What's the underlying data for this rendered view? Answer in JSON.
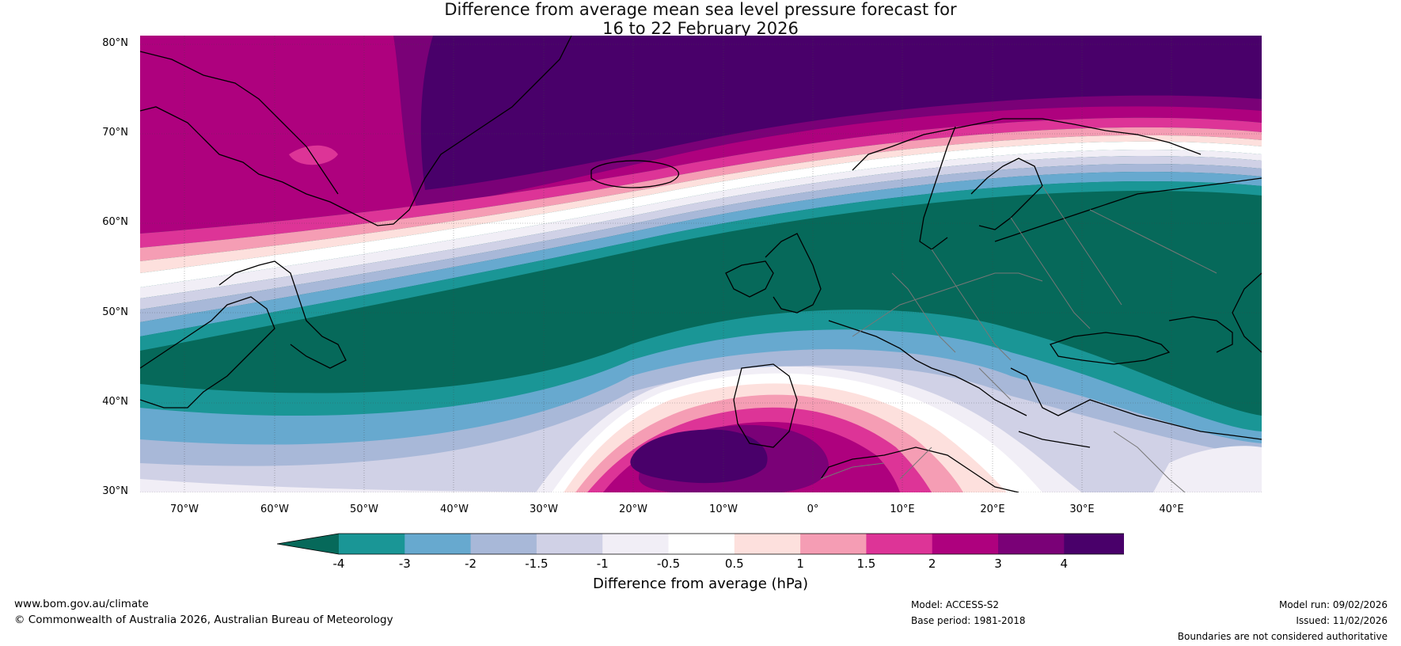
{
  "title": {
    "line1": "Difference from average mean sea level pressure forecast for",
    "line2": "16 to 22 February 2026"
  },
  "map": {
    "lat_labels": [
      "80°N",
      "70°N",
      "60°N",
      "50°N",
      "40°N",
      "30°N"
    ],
    "lon_labels": [
      "70°W",
      "60°W",
      "50°W",
      "40°W",
      "30°W",
      "20°W",
      "10°W",
      "0°",
      "10°E",
      "20°E",
      "30°E",
      "40°E"
    ],
    "extent": {
      "lon_min": -75,
      "lon_max": 50,
      "lat_min": 30,
      "lat_max": 81
    }
  },
  "colorbar": {
    "ticks": [
      "-4",
      "-3",
      "-2",
      "-1.5",
      "-1",
      "-0.5",
      "0.5",
      "1",
      "1.5",
      "2",
      "3",
      "4"
    ],
    "colors": [
      "#1a9696",
      "#67a9cf",
      "#a8b8d8",
      "#d0d1e6",
      "#f1eef6",
      "#ffffff",
      "#fde0dd",
      "#f59db4",
      "#dd3497",
      "#ae017e",
      "#7a0177",
      "#49006a"
    ],
    "under_color": "#06695a",
    "over_color": "#49006a",
    "label": "Difference from average (hPa)"
  },
  "footer": {
    "website": "www.bom.gov.au/climate",
    "copyright": "© Commonwealth of Australia 2026, Australian Bureau of Meteorology",
    "model": "Model: ACCESS-S2",
    "base_period": "Base period: 1981-2018",
    "model_run": "Model run: 09/02/2026",
    "issued": "Issued: 11/02/2026",
    "disclaimer": "Boundaries are not considered authoritative"
  }
}
